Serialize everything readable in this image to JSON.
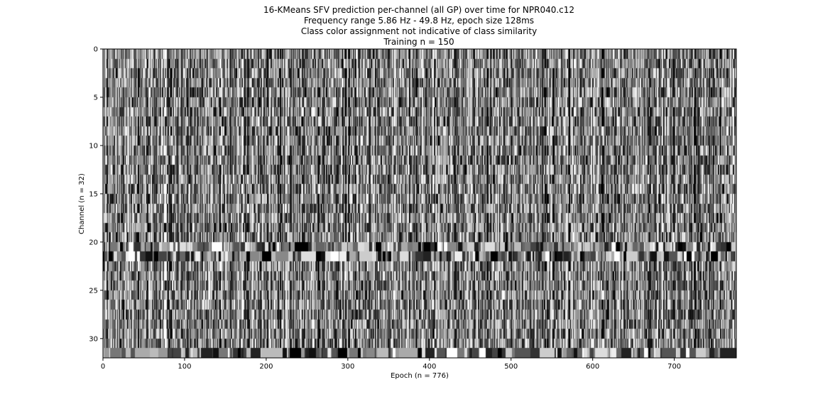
{
  "chart_data": {
    "type": "heatmap",
    "title": [
      "16-KMeans SFV prediction per-channel (all GP) over time for NPR040.c12",
      "Frequency range 5.86 Hz - 49.8 Hz, epoch size 128ms",
      "Class color assignment not indicative of class similarity",
      "Training n = 150"
    ],
    "xlabel": "Epoch (n = 776)",
    "ylabel": "Channel (n = 32)",
    "xlim": [
      0,
      776
    ],
    "ylim": [
      32,
      0
    ],
    "xticks": [
      "0",
      "100",
      "200",
      "300",
      "400",
      "500",
      "600",
      "700"
    ],
    "yticks": [
      "0",
      "5",
      "10",
      "15",
      "20",
      "25",
      "30"
    ],
    "n_epochs": 776,
    "n_channels": 32,
    "n_classes": 16,
    "colormap": "gray",
    "grid": false,
    "cell_values_note": ""
  }
}
